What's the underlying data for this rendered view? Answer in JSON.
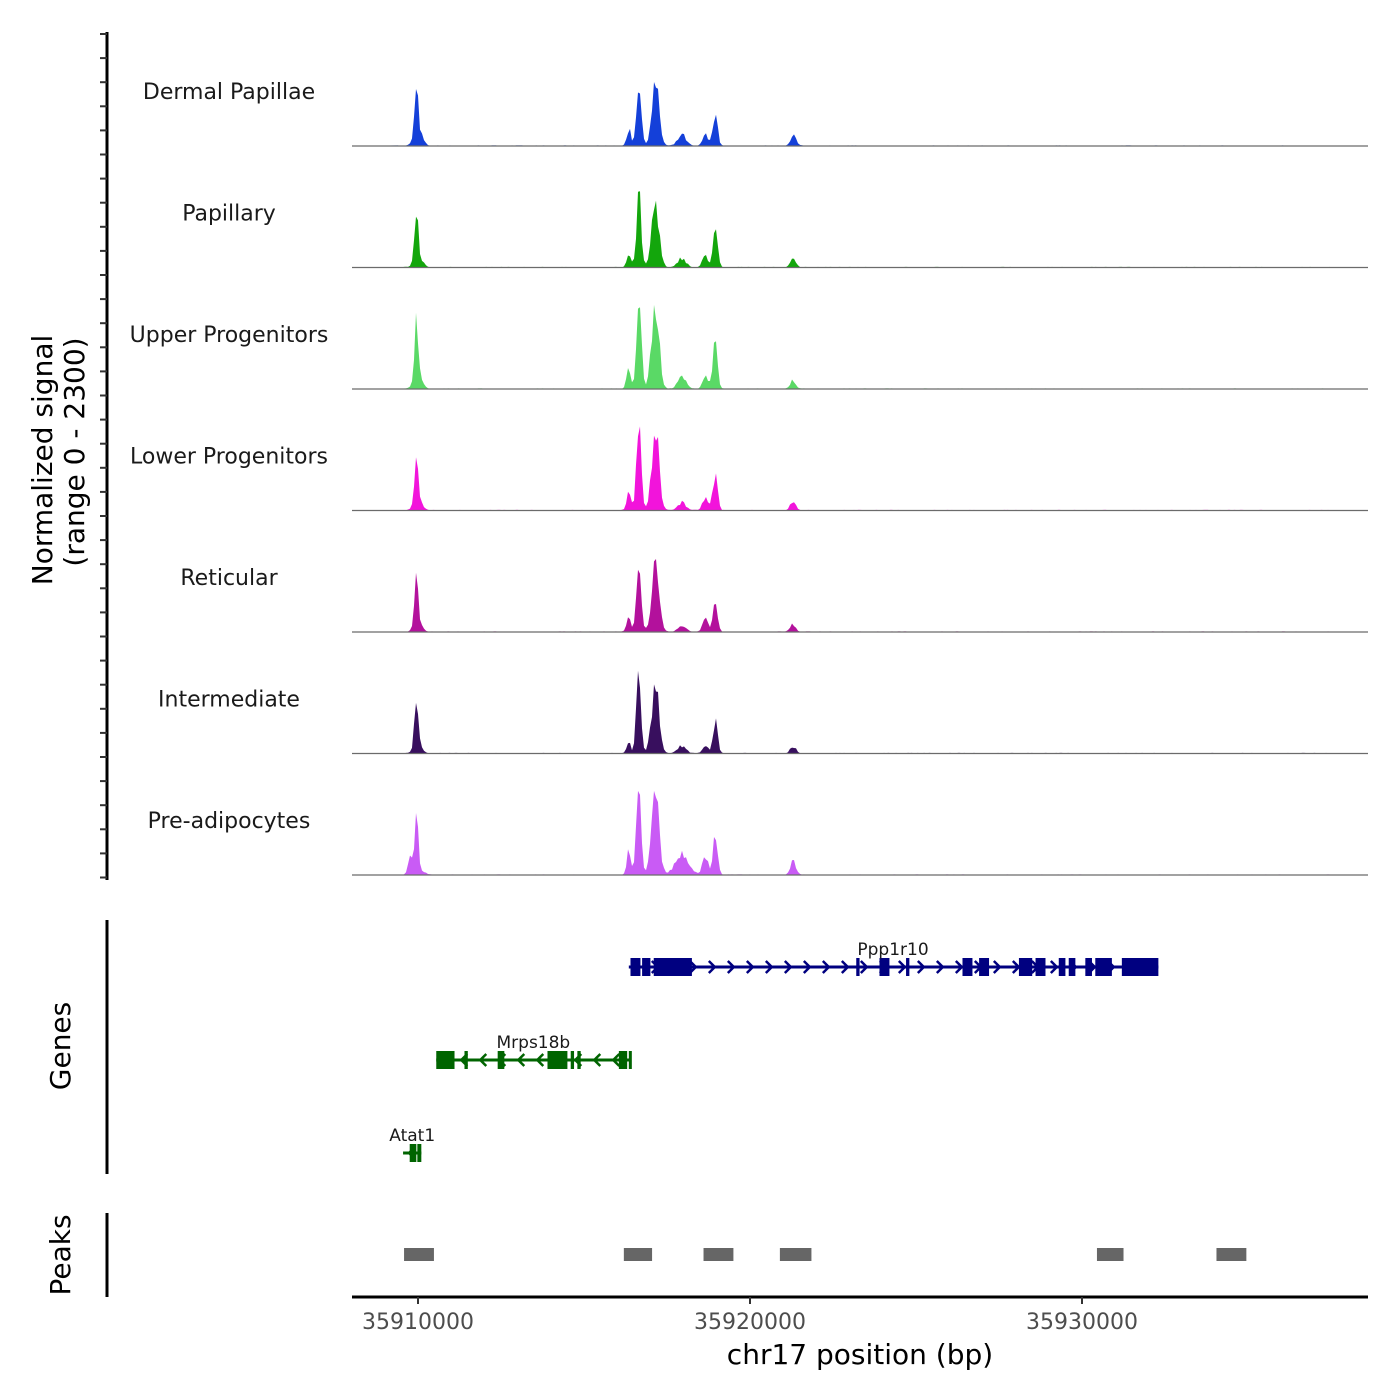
{
  "chart_data": {
    "type": "area",
    "title": "",
    "xlabel": "chr17 position (bp)",
    "ylabel": "Normalized signal\n(range 0 - 2300)",
    "ylabel_lines": [
      "Normalized signal",
      "(range 0 - 2300)"
    ],
    "ylim": [
      0,
      2300
    ],
    "xlim": [
      35908012,
      35938614
    ],
    "x_ticks": [
      35910000,
      35920000,
      35930000
    ],
    "x_tick_labels": [
      "35910000",
      "35920000",
      "35930000"
    ],
    "grid": false,
    "legend": "none",
    "series": [
      {
        "name": "Dermal Papillae",
        "color": "#1440D9",
        "peaks": [
          [
            35909950,
            1250,
            55
          ],
          [
            35910000,
            520,
            120
          ],
          [
            35916350,
            550,
            60
          ],
          [
            35916650,
            2150,
            70
          ],
          [
            35917150,
            1950,
            110
          ],
          [
            35917950,
            350,
            120
          ],
          [
            35918650,
            350,
            80
          ],
          [
            35918950,
            1130,
            70
          ],
          [
            35921300,
            380,
            80
          ]
        ]
      },
      {
        "name": "Papillary",
        "color": "#13A60C",
        "peaks": [
          [
            35909950,
            1400,
            55
          ],
          [
            35910000,
            380,
            120
          ],
          [
            35916350,
            420,
            60
          ],
          [
            35916650,
            2300,
            70
          ],
          [
            35917150,
            2100,
            110
          ],
          [
            35917950,
            300,
            120
          ],
          [
            35918650,
            380,
            80
          ],
          [
            35918950,
            1200,
            70
          ],
          [
            35921300,
            270,
            80
          ]
        ]
      },
      {
        "name": "Upper Progenitors",
        "color": "#5AD966",
        "peaks": [
          [
            35909950,
            1850,
            55
          ],
          [
            35910000,
            500,
            120
          ],
          [
            35916350,
            700,
            60
          ],
          [
            35916650,
            3000,
            70
          ],
          [
            35917150,
            2800,
            110
          ],
          [
            35917950,
            400,
            120
          ],
          [
            35918650,
            400,
            80
          ],
          [
            35918950,
            1600,
            70
          ],
          [
            35921300,
            270,
            80
          ]
        ]
      },
      {
        "name": "Lower Progenitors",
        "color": "#F214DB",
        "peaks": [
          [
            35909950,
            1500,
            55
          ],
          [
            35910000,
            350,
            120
          ],
          [
            35916350,
            650,
            60
          ],
          [
            35916650,
            2700,
            70
          ],
          [
            35917150,
            2600,
            110
          ],
          [
            35917950,
            250,
            120
          ],
          [
            35918650,
            380,
            80
          ],
          [
            35918950,
            1200,
            70
          ],
          [
            35921300,
            300,
            80
          ]
        ]
      },
      {
        "name": "Reticular",
        "color": "#B3119C",
        "peaks": [
          [
            35909950,
            1300,
            55
          ],
          [
            35910000,
            300,
            120
          ],
          [
            35916350,
            450,
            60
          ],
          [
            35916650,
            2400,
            70
          ],
          [
            35917150,
            2250,
            110
          ],
          [
            35917950,
            200,
            120
          ],
          [
            35918650,
            400,
            80
          ],
          [
            35918950,
            1100,
            70
          ],
          [
            35921300,
            250,
            80
          ]
        ]
      },
      {
        "name": "Intermediate",
        "color": "#380F5E",
        "peaks": [
          [
            35909950,
            1400,
            55
          ],
          [
            35910000,
            300,
            120
          ],
          [
            35916350,
            350,
            60
          ],
          [
            35916650,
            2400,
            70
          ],
          [
            35917150,
            2200,
            110
          ],
          [
            35917950,
            250,
            120
          ],
          [
            35918650,
            280,
            80
          ],
          [
            35918950,
            1050,
            70
          ],
          [
            35921300,
            230,
            80
          ]
        ]
      },
      {
        "name": "Pre-adipocytes",
        "color": "#C95BF5",
        "peaks": [
          [
            35909950,
            1650,
            55
          ],
          [
            35909750,
            500,
            60
          ],
          [
            35910000,
            200,
            150
          ],
          [
            35916350,
            800,
            60
          ],
          [
            35916650,
            2700,
            70
          ],
          [
            35917150,
            2800,
            110
          ],
          [
            35917950,
            650,
            200
          ],
          [
            35918650,
            600,
            80
          ],
          [
            35918950,
            1300,
            70
          ],
          [
            35921300,
            450,
            80
          ]
        ]
      }
    ],
    "genes": [
      {
        "name": "Ppp1r10",
        "strand": "+",
        "color": "#000080",
        "row": 0,
        "start": 35916350,
        "end": 35932300,
        "exons": [
          [
            35916400,
            35916700
          ],
          [
            35916750,
            35917000
          ],
          [
            35917100,
            35918250
          ],
          [
            35923200,
            35923300
          ],
          [
            35923900,
            35924200
          ],
          [
            35924700,
            35924800
          ],
          [
            35926400,
            35926700
          ],
          [
            35926900,
            35927200
          ],
          [
            35928100,
            35928500
          ],
          [
            35928600,
            35928900
          ],
          [
            35929300,
            35929500
          ],
          [
            35929600,
            35929800
          ],
          [
            35930100,
            35930300
          ],
          [
            35930400,
            35930900
          ],
          [
            35931200,
            35932300
          ]
        ]
      },
      {
        "name": "Mrps18b",
        "strand": "-",
        "color": "#006400",
        "row": 1,
        "start": 35910550,
        "end": 35916400,
        "exons": [
          [
            35910550,
            35911100
          ],
          [
            35911400,
            35911500
          ],
          [
            35912400,
            35912600
          ],
          [
            35913900,
            35914500
          ],
          [
            35914600,
            35914700
          ],
          [
            35914800,
            35914900
          ],
          [
            35916050,
            35916300
          ],
          [
            35916350,
            35916400
          ]
        ]
      },
      {
        "name": "Atat1",
        "strand": "-",
        "color": "#006400",
        "row": 2,
        "start": 35909550,
        "end": 35910100,
        "exons": [
          [
            35909750,
            35909950
          ],
          [
            35909980,
            35910100
          ]
        ]
      }
    ],
    "peaks_track": [
      [
        35909580,
        35910480
      ],
      [
        35916200,
        35917050
      ],
      [
        35918600,
        35919500
      ],
      [
        35920900,
        35921850
      ],
      [
        35930450,
        35931250
      ],
      [
        35934050,
        35934950
      ]
    ],
    "track_labels": {
      "genes": "Genes",
      "peaks": "Peaks"
    },
    "colors": {
      "peak": "#666666",
      "baseline": "#6b6b6b",
      "axis": "#000000"
    }
  }
}
